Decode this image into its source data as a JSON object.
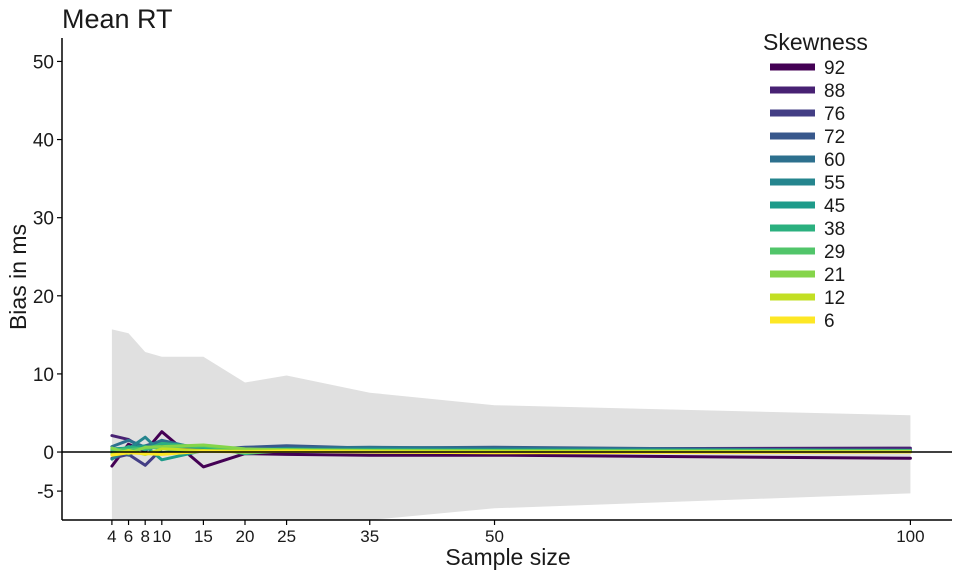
{
  "chart_data": {
    "type": "line",
    "title": "Mean RT",
    "xlabel": "Sample size",
    "ylabel": "Bias in ms",
    "x": [
      4,
      6,
      8,
      10,
      15,
      20,
      25,
      35,
      50,
      100
    ],
    "x_ticks": [
      4,
      6,
      8,
      10,
      15,
      20,
      25,
      35,
      50,
      100
    ],
    "y_ticks": [
      -5,
      0,
      10,
      20,
      30,
      40,
      50
    ],
    "xlim": [
      -2,
      105
    ],
    "ylim": [
      -8.7,
      53
    ],
    "grid": false,
    "legend_title": "Skewness",
    "legend_position": "top-right",
    "reference_line": 0,
    "band": {
      "upper": [
        15.7,
        15.2,
        12.8,
        12.2,
        12.2,
        8.9,
        9.8,
        7.6,
        6.0,
        4.7
      ],
      "lower": [
        -8.7,
        -8.7,
        -8.7,
        -8.7,
        -8.7,
        -8.7,
        -8.7,
        -8.7,
        -7.2,
        -5.3
      ],
      "color": "#e0e0e0"
    },
    "series": [
      {
        "name": "92",
        "color": "#440154",
        "values": [
          -1.8,
          1.0,
          0.1,
          2.6,
          -1.9,
          -0.2,
          -0.3,
          -0.4,
          -0.4,
          -0.8
        ]
      },
      {
        "name": "88",
        "color": "#482173",
        "values": [
          2.1,
          1.6,
          0.3,
          0.9,
          0.6,
          0.2,
          0.6,
          0.4,
          0.4,
          0.5
        ]
      },
      {
        "name": "76",
        "color": "#433E85",
        "values": [
          -0.8,
          -0.3,
          -1.7,
          0.4,
          0.4,
          0.2,
          0.5,
          0.4,
          0.2,
          0.3
        ]
      },
      {
        "name": "72",
        "color": "#38588C",
        "values": [
          0.2,
          -0.4,
          0.8,
          1.4,
          0.3,
          0.6,
          0.8,
          0.5,
          0.6,
          0.2
        ]
      },
      {
        "name": "60",
        "color": "#2D708E",
        "values": [
          0.7,
          1.5,
          0.6,
          1.5,
          0.3,
          0.3,
          0.5,
          0.6,
          0.5,
          0.2
        ]
      },
      {
        "name": "55",
        "color": "#25858E",
        "values": [
          -0.9,
          0.4,
          1.9,
          -0.1,
          0.5,
          0.2,
          0.3,
          0.4,
          0.3,
          0.1
        ]
      },
      {
        "name": "45",
        "color": "#1E9B8A",
        "values": [
          0.4,
          0.5,
          0.8,
          -1.0,
          0.2,
          0.3,
          0.4,
          0.2,
          0.3,
          0.2
        ]
      },
      {
        "name": "38",
        "color": "#2BB07F",
        "values": [
          -0.1,
          0.7,
          0.3,
          1.1,
          0.6,
          -0.2,
          0.2,
          0.3,
          0.2,
          0.2
        ]
      },
      {
        "name": "29",
        "color": "#51C56A",
        "values": [
          0.3,
          0.3,
          0.5,
          0.6,
          0.8,
          0.1,
          0.3,
          0.2,
          0.2,
          0.1
        ]
      },
      {
        "name": "21",
        "color": "#85D54A",
        "values": [
          0.5,
          -0.2,
          0.6,
          0.7,
          0.9,
          0.4,
          0.3,
          0.2,
          0.1,
          0.1
        ]
      },
      {
        "name": "12",
        "color": "#C2DF23",
        "values": [
          -0.3,
          0.2,
          -0.3,
          0.4,
          0.2,
          0.1,
          0.2,
          0.1,
          0.1,
          0.0
        ]
      },
      {
        "name": "6",
        "color": "#FDE725",
        "values": [
          -0.4,
          -0.1,
          -0.2,
          -0.3,
          0.1,
          0.0,
          0.1,
          0.0,
          -0.1,
          0.0
        ]
      }
    ]
  }
}
